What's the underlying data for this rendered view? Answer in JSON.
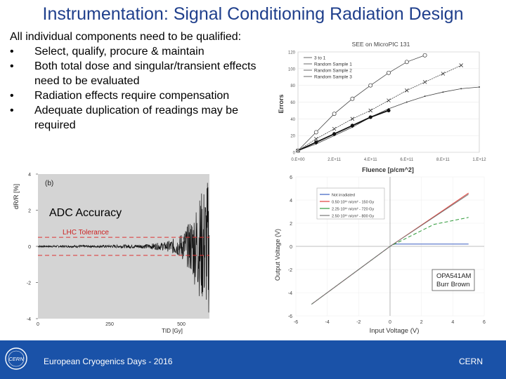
{
  "slide": {
    "title": "Instrumentation: Signal Conditioning Radiation Design",
    "lead": "All individual components need to be qualified:",
    "bullets": [
      "Select, qualify, procure & maintain",
      "Both total dose and singular/transient effects need to be evaluated",
      "Radiation effects require compensation",
      "Adequate duplication of readings may be required"
    ],
    "footer_left": "European Cryogenics Days - 2016",
    "footer_right": "CERN",
    "logo_text": "CERN",
    "colors": {
      "title": "#1f3f8c",
      "footer": "#1a52a8"
    }
  },
  "chart_data": [
    {
      "type": "scatter",
      "title": "SEE on MicroPIC 131",
      "xlabel": "Fluence [p/cm^2]",
      "ylabel": "Errors",
      "xlim": [
        0,
        1000000000000.0
      ],
      "ylim": [
        0,
        120
      ],
      "x_ticks": [
        "0.E+00",
        "2.E+11",
        "4.E+11",
        "6.E+11",
        "8.E+11",
        "1.E+12"
      ],
      "y_ticks": [
        "0",
        "20",
        "40",
        "60",
        "80",
        "100",
        "120"
      ],
      "legend_position": "top-left",
      "series": [
        {
          "name": "3 to 1",
          "x": [
            0,
            100000000000.0,
            200000000000.0,
            300000000000.0,
            400000000000.0,
            500000000000.0,
            600000000000.0,
            700000000000.0,
            800000000000.0,
            900000000000.0,
            1000000000000.0
          ],
          "y": [
            2,
            10,
            20,
            30,
            42,
            52,
            60,
            67,
            72,
            76,
            78
          ]
        },
        {
          "name": "Random Sample 1",
          "x": [
            0,
            100000000000.0,
            200000000000.0,
            300000000000.0,
            400000000000.0,
            500000000000.0
          ],
          "y": [
            2,
            12,
            22,
            32,
            42,
            50
          ]
        },
        {
          "name": "Random Sample 2",
          "x": [
            0,
            100000000000.0,
            200000000000.0,
            300000000000.0,
            400000000000.0,
            500000000000.0,
            600000000000.0,
            700000000000.0
          ],
          "y": [
            2,
            24,
            46,
            64,
            80,
            95,
            108,
            116
          ]
        },
        {
          "name": "Random Sample 3",
          "x": [
            0,
            100000000000.0,
            200000000000.0,
            300000000000.0,
            400000000000.0,
            500000000000.0,
            600000000000.0,
            700000000000.0,
            800000000000.0,
            900000000000.0
          ],
          "y": [
            2,
            16,
            28,
            40,
            50,
            62,
            74,
            84,
            94,
            104
          ]
        }
      ]
    },
    {
      "type": "line",
      "panel_label": "(b)",
      "annotation": "ADC Accuracy",
      "reference_label": "LHC Tolerance",
      "xlabel": "TID [Gy]",
      "ylabel": "dR/R [%]",
      "xlim": [
        0,
        400
      ],
      "ylim": [
        -4,
        4
      ],
      "x_ticks": [
        "0",
        "250",
        "500"
      ],
      "y_ticks": [
        "4",
        "2",
        "0",
        "-2",
        "-4"
      ],
      "tolerance": [
        0.5,
        -0.5
      ],
      "noise_envelope": {
        "tid": [
          0,
          150,
          250,
          300,
          330,
          350,
          370,
          390,
          400
        ],
        "amplitude": [
          0.05,
          0.07,
          0.12,
          0.25,
          0.6,
          1.2,
          2.4,
          3.6,
          3.9
        ]
      }
    },
    {
      "type": "line",
      "xlabel": "Input Voltage (V)",
      "ylabel": "Output Voltage (V)",
      "xlim": [
        -6,
        6
      ],
      "ylim": [
        -6,
        6
      ],
      "x_ticks": [
        "-6",
        "-4",
        "-2",
        "0",
        "2",
        "4",
        "6"
      ],
      "y_ticks": [
        "6",
        "4",
        "2",
        "0",
        "-2",
        "-4",
        "-6"
      ],
      "legend_position": "top-left",
      "annotation": "OPA541AM Burr Brown",
      "series": [
        {
          "name": "Not irradiated",
          "color": "#3b5fc0",
          "x": [
            -5,
            0,
            0.2,
            5
          ],
          "y": [
            -5,
            0,
            0.2,
            0.2
          ]
        },
        {
          "name": "0.50·10¹¹ n/cm² - 150 Gy",
          "color": "#e0403a",
          "x": [
            -5,
            0,
            5
          ],
          "y": [
            -5,
            0,
            4.6
          ]
        },
        {
          "name": "2.25·10¹¹ n/cm² - 720 Gy",
          "color": "#2f9a3a",
          "x": [
            -5,
            0,
            2.8,
            5
          ],
          "y": [
            -5,
            0,
            1.9,
            2.5
          ]
        },
        {
          "name": "2.50·10¹¹ n/cm² - 800 Gy",
          "color": "#777777",
          "x": [
            -5,
            0,
            5
          ],
          "y": [
            -5,
            0,
            4.5
          ]
        }
      ]
    }
  ]
}
